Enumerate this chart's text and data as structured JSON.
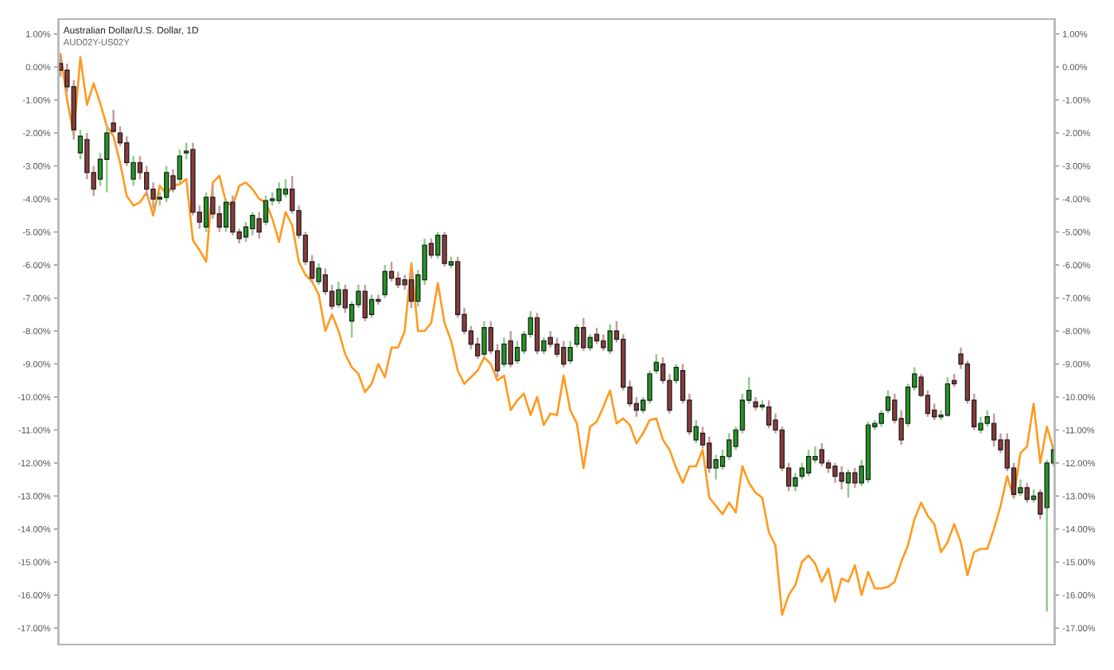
{
  "chart_data": {
    "type": "candlestick",
    "title": "Australian Dollar/U.S. Dollar, 1D",
    "subtitle": "AUD02Y-US02Y",
    "categories": [
      null,
      null,
      null,
      null,
      null,
      null,
      null,
      null,
      null,
      null,
      null,
      null,
      null,
      null,
      null,
      null,
      null,
      null,
      null,
      null,
      null,
      null,
      null,
      null,
      null,
      null,
      null,
      null,
      null,
      null,
      null,
      null,
      null,
      null,
      null,
      null,
      null,
      null,
      null,
      null,
      null,
      null,
      null,
      null,
      null,
      null,
      null,
      null,
      null,
      null,
      null,
      null,
      null,
      null,
      null,
      null,
      null,
      null,
      null,
      null,
      null,
      null,
      null,
      null,
      null,
      null,
      null,
      null,
      null,
      null,
      null,
      null,
      null,
      null,
      null,
      null,
      null,
      null,
      null,
      null,
      null,
      null,
      null,
      null,
      null,
      null,
      null,
      null,
      null,
      null,
      null,
      null,
      null,
      null,
      null,
      null,
      null,
      null,
      null,
      null,
      null,
      null,
      null,
      null,
      null,
      null,
      null,
      null,
      null,
      null,
      null,
      null,
      null,
      null,
      null,
      null,
      null,
      null,
      null,
      null,
      null,
      null,
      null,
      null,
      null,
      null,
      null,
      null,
      null,
      null,
      null,
      null,
      null,
      null,
      null,
      null,
      null,
      null,
      null,
      null,
      null,
      null,
      null,
      null,
      null,
      null,
      null,
      null,
      null,
      null,
      null
    ],
    "ohlc": [
      [
        0.1,
        0.35,
        -0.3,
        -0.1
      ],
      [
        -0.1,
        0.1,
        -0.75,
        -0.6
      ],
      [
        -0.6,
        -0.4,
        -2.2,
        -1.9
      ],
      [
        -2.6,
        -1.9,
        -2.8,
        -2.1
      ],
      [
        -2.2,
        -2.0,
        -3.4,
        -3.2
      ],
      [
        -3.2,
        -3.0,
        -3.9,
        -3.7
      ],
      [
        -3.4,
        -2.6,
        -3.6,
        -2.8
      ],
      [
        -2.8,
        -1.8,
        -3.8,
        -2.0
      ],
      [
        -1.7,
        -1.3,
        -2.0,
        -1.95
      ],
      [
        -2.0,
        -1.8,
        -2.4,
        -2.3
      ],
      [
        -2.3,
        -2.1,
        -3.0,
        -2.9
      ],
      [
        -3.4,
        -2.7,
        -3.6,
        -2.9
      ],
      [
        -2.9,
        -2.7,
        -3.4,
        -3.2
      ],
      [
        -3.2,
        -3.0,
        -3.9,
        -3.7
      ],
      [
        -3.7,
        -3.5,
        -4.3,
        -4.0
      ],
      [
        -4.0,
        -3.8,
        -4.2,
        -3.95
      ],
      [
        -3.95,
        -3.0,
        -4.1,
        -3.2
      ],
      [
        -3.3,
        -3.1,
        -3.8,
        -3.7
      ],
      [
        -3.4,
        -2.5,
        -3.5,
        -2.7
      ],
      [
        -2.6,
        -2.3,
        -2.8,
        -2.55
      ],
      [
        -2.5,
        -2.3,
        -4.5,
        -4.4
      ],
      [
        -4.4,
        -4.2,
        -4.9,
        -4.7
      ],
      [
        -4.85,
        -3.8,
        -5.0,
        -3.95
      ],
      [
        -3.95,
        -3.6,
        -4.6,
        -4.45
      ],
      [
        -4.45,
        -4.2,
        -5.0,
        -4.85
      ],
      [
        -4.85,
        -4.0,
        -5.0,
        -4.1
      ],
      [
        -4.1,
        -3.9,
        -5.1,
        -5.0
      ],
      [
        -5.0,
        -4.9,
        -5.35,
        -5.2
      ],
      [
        -5.15,
        -4.7,
        -5.3,
        -4.85
      ],
      [
        -4.9,
        -4.4,
        -5.1,
        -4.5
      ],
      [
        -4.6,
        -4.4,
        -5.2,
        -5.0
      ],
      [
        -4.7,
        -3.9,
        -4.8,
        -4.05
      ],
      [
        -4.05,
        -3.8,
        -4.2,
        -4.0
      ],
      [
        -4.05,
        -3.5,
        -4.15,
        -3.7
      ],
      [
        -3.85,
        -3.4,
        -3.95,
        -3.7
      ],
      [
        -3.7,
        -3.3,
        -4.45,
        -4.35
      ],
      [
        -4.35,
        -4.2,
        -5.2,
        -5.1
      ],
      [
        -5.1,
        -5.0,
        -6.0,
        -5.9
      ],
      [
        -5.9,
        -5.7,
        -6.55,
        -6.4
      ],
      [
        -6.5,
        -5.95,
        -6.6,
        -6.1
      ],
      [
        -6.3,
        -6.1,
        -6.9,
        -6.8
      ],
      [
        -6.8,
        -6.6,
        -7.35,
        -7.25
      ],
      [
        -7.2,
        -6.5,
        -7.3,
        -6.75
      ],
      [
        -6.75,
        -6.6,
        -7.45,
        -7.3
      ],
      [
        -7.7,
        -7.1,
        -8.2,
        -7.2
      ],
      [
        -7.2,
        -6.6,
        -7.3,
        -6.8
      ],
      [
        -6.8,
        -6.6,
        -7.7,
        -7.6
      ],
      [
        -7.5,
        -6.9,
        -7.6,
        -7.05
      ],
      [
        -7.05,
        -6.9,
        -7.2,
        -7.1
      ],
      [
        -6.9,
        -6.0,
        -7.0,
        -6.2
      ],
      [
        -6.2,
        -5.9,
        -6.5,
        -6.4
      ],
      [
        -6.4,
        -6.2,
        -6.7,
        -6.6
      ],
      [
        -6.45,
        -6.3,
        -6.75,
        -6.6
      ],
      [
        -6.45,
        -6.2,
        -7.3,
        -7.1
      ],
      [
        -7.1,
        -6.15,
        -7.25,
        -6.3
      ],
      [
        -6.45,
        -5.2,
        -6.6,
        -5.4
      ],
      [
        -5.35,
        -5.2,
        -5.8,
        -5.7
      ],
      [
        -5.7,
        -5.0,
        -5.8,
        -5.1
      ],
      [
        -5.1,
        -5.0,
        -6.05,
        -5.95
      ],
      [
        -6.0,
        -5.75,
        -6.1,
        -5.9
      ],
      [
        -5.9,
        -5.75,
        -7.6,
        -7.5
      ],
      [
        -7.5,
        -7.3,
        -8.1,
        -8.0
      ],
      [
        -8.0,
        -7.85,
        -8.55,
        -8.4
      ],
      [
        -8.4,
        -8.2,
        -8.85,
        -8.75
      ],
      [
        -8.7,
        -7.7,
        -8.8,
        -7.9
      ],
      [
        -7.9,
        -7.7,
        -8.7,
        -8.6
      ],
      [
        -8.6,
        -8.4,
        -9.4,
        -9.2
      ],
      [
        -9.0,
        -8.2,
        -9.1,
        -8.4
      ],
      [
        -8.3,
        -8.0,
        -9.1,
        -9.0
      ],
      [
        -8.9,
        -8.3,
        -9.0,
        -8.5
      ],
      [
        -8.6,
        -8.0,
        -8.7,
        -8.1
      ],
      [
        -8.1,
        -7.4,
        -8.2,
        -7.6
      ],
      [
        -7.6,
        -7.45,
        -8.7,
        -8.6
      ],
      [
        -8.6,
        -8.2,
        -8.7,
        -8.3
      ],
      [
        -8.2,
        -8.0,
        -8.5,
        -8.4
      ],
      [
        -8.4,
        -8.2,
        -8.8,
        -8.7
      ],
      [
        -8.5,
        -8.3,
        -9.1,
        -9.0
      ],
      [
        -8.9,
        -8.3,
        -9.0,
        -8.5
      ],
      [
        -8.4,
        -7.8,
        -8.5,
        -7.9
      ],
      [
        -7.9,
        -7.6,
        -8.6,
        -8.5
      ],
      [
        -8.5,
        -8.1,
        -8.6,
        -8.2
      ],
      [
        -8.1,
        -7.9,
        -8.4,
        -8.3
      ],
      [
        -8.3,
        -8.1,
        -8.6,
        -8.5
      ],
      [
        -8.6,
        -7.8,
        -8.7,
        -8.0
      ],
      [
        -8.0,
        -7.7,
        -8.35,
        -8.25
      ],
      [
        -8.25,
        -8.1,
        -9.8,
        -9.7
      ],
      [
        -9.7,
        -9.5,
        -10.3,
        -10.2
      ],
      [
        -10.2,
        -10.0,
        -10.6,
        -10.4
      ],
      [
        -10.4,
        -10.0,
        -10.5,
        -10.1
      ],
      [
        -10.1,
        -9.2,
        -10.2,
        -9.3
      ],
      [
        -9.2,
        -8.7,
        -9.3,
        -8.95
      ],
      [
        -9.0,
        -8.8,
        -9.6,
        -9.5
      ],
      [
        -9.5,
        -9.3,
        -10.5,
        -10.4
      ],
      [
        -9.5,
        -9.0,
        -9.6,
        -9.1
      ],
      [
        -9.2,
        -9.0,
        -10.2,
        -10.1
      ],
      [
        -10.1,
        -9.9,
        -11.15,
        -11.05
      ],
      [
        -11.3,
        -10.7,
        -11.4,
        -10.9
      ],
      [
        -11.1,
        -10.9,
        -11.55,
        -11.45
      ],
      [
        -11.4,
        -11.2,
        -12.3,
        -12.15
      ],
      [
        -12.15,
        -11.75,
        -12.5,
        -11.9
      ],
      [
        -12.1,
        -11.6,
        -12.2,
        -11.8
      ],
      [
        -11.8,
        -11.1,
        -11.9,
        -11.3
      ],
      [
        -11.5,
        -10.9,
        -11.6,
        -11.0
      ],
      [
        -11.0,
        -9.9,
        -11.1,
        -10.1
      ],
      [
        -10.1,
        -9.4,
        -10.2,
        -9.8
      ],
      [
        -10.15,
        -10.0,
        -10.4,
        -10.3
      ],
      [
        -10.3,
        -10.1,
        -10.4,
        -10.25
      ],
      [
        -10.3,
        -10.1,
        -10.95,
        -10.85
      ],
      [
        -10.7,
        -10.5,
        -11.1,
        -11.0
      ],
      [
        -11.0,
        -10.9,
        -12.25,
        -12.15
      ],
      [
        -12.15,
        -12.0,
        -12.85,
        -12.7
      ],
      [
        -12.7,
        -12.3,
        -12.85,
        -12.45
      ],
      [
        -12.4,
        -12.0,
        -12.5,
        -12.15
      ],
      [
        -12.3,
        -11.6,
        -12.4,
        -11.8
      ],
      [
        -11.9,
        -11.5,
        -12.0,
        -11.8
      ],
      [
        -11.6,
        -11.4,
        -12.1,
        -12.0
      ],
      [
        -12.0,
        -11.9,
        -12.3,
        -12.15
      ],
      [
        -12.1,
        -12.0,
        -12.6,
        -12.4
      ],
      [
        -12.3,
        -12.1,
        -12.8,
        -12.55
      ],
      [
        -12.6,
        -12.2,
        -13.05,
        -12.3
      ],
      [
        -12.3,
        -12.15,
        -12.75,
        -12.6
      ],
      [
        -12.6,
        -11.9,
        -12.7,
        -12.1
      ],
      [
        -12.5,
        -10.75,
        -12.6,
        -10.85
      ],
      [
        -10.9,
        -10.7,
        -11.0,
        -10.8
      ],
      [
        -10.8,
        -10.4,
        -10.9,
        -10.5
      ],
      [
        -10.4,
        -9.8,
        -10.5,
        -10.0
      ],
      [
        -10.1,
        -9.9,
        -10.8,
        -10.7
      ],
      [
        -10.65,
        -10.4,
        -11.45,
        -11.3
      ],
      [
        -10.8,
        -9.6,
        -10.9,
        -9.7
      ],
      [
        -9.7,
        -9.1,
        -9.8,
        -9.3
      ],
      [
        -9.4,
        -9.3,
        -10.0,
        -9.95
      ],
      [
        -9.95,
        -9.8,
        -10.6,
        -10.5
      ],
      [
        -10.4,
        -10.2,
        -10.7,
        -10.6
      ],
      [
        -10.6,
        -10.4,
        -10.7,
        -10.55
      ],
      [
        -10.55,
        -9.4,
        -10.6,
        -9.6
      ],
      [
        -9.5,
        -9.3,
        -9.7,
        -9.6
      ],
      [
        -8.7,
        -8.5,
        -9.15,
        -9.0
      ],
      [
        -9.0,
        -8.9,
        -10.2,
        -10.1
      ],
      [
        -10.1,
        -9.9,
        -11.0,
        -10.9
      ],
      [
        -11.0,
        -10.6,
        -11.1,
        -10.8
      ],
      [
        -10.8,
        -10.4,
        -10.9,
        -10.6
      ],
      [
        -10.8,
        -10.5,
        -11.5,
        -11.3
      ],
      [
        -11.3,
        -11.1,
        -11.7,
        -11.6
      ],
      [
        -11.3,
        -11.1,
        -12.25,
        -12.15
      ],
      [
        -12.15,
        -12.0,
        -13.05,
        -12.95
      ],
      [
        -12.9,
        -12.5,
        -13.0,
        -12.75
      ],
      [
        -12.75,
        -12.6,
        -13.2,
        -13.1
      ],
      [
        -13.1,
        -12.8,
        -13.2,
        -13.0
      ],
      [
        -12.9,
        -12.8,
        -13.7,
        -13.55
      ],
      [
        -13.35,
        -11.9,
        -16.5,
        -12.0
      ],
      [
        -12.0,
        -11.5,
        -12.1,
        -11.6
      ]
    ],
    "colors": [
      "#8e3a3a",
      "#8e3a3a",
      "#8e3a3a",
      "#1f9a1f",
      "#8e3a3a",
      "#8e3a3a",
      "#1f9a1f",
      "#1f9a1f",
      "#8e3a3a",
      "#8e3a3a",
      "#8e3a3a",
      "#1f9a1f",
      "#8e3a3a",
      "#8e3a3a",
      "#8e3a3a",
      "#1f9a1f",
      "#1f9a1f",
      "#8e3a3a",
      "#1f9a1f",
      "#1f9a1f",
      "#8e3a3a",
      "#8e3a3a",
      "#1f9a1f",
      "#8e3a3a",
      "#8e3a3a",
      "#1f9a1f",
      "#8e3a3a",
      "#8e3a3a",
      "#1f9a1f",
      "#1f9a1f",
      "#8e3a3a",
      "#1f9a1f",
      "#1f9a1f",
      "#1f9a1f",
      "#1f9a1f",
      "#8e3a3a",
      "#8e3a3a",
      "#8e3a3a",
      "#8e3a3a",
      "#1f9a1f",
      "#8e3a3a",
      "#8e3a3a",
      "#1f9a1f",
      "#8e3a3a",
      "#1f9a1f",
      "#1f9a1f",
      "#8e3a3a",
      "#1f9a1f",
      "#8e3a3a",
      "#1f9a1f",
      "#8e3a3a",
      "#8e3a3a",
      "#8e3a3a",
      "#8e3a3a",
      "#1f9a1f",
      "#1f9a1f",
      "#8e3a3a",
      "#1f9a1f",
      "#8e3a3a",
      "#1f9a1f",
      "#8e3a3a",
      "#8e3a3a",
      "#8e3a3a",
      "#8e3a3a",
      "#1f9a1f",
      "#8e3a3a",
      "#8e3a3a",
      "#1f9a1f",
      "#8e3a3a",
      "#1f9a1f",
      "#1f9a1f",
      "#1f9a1f",
      "#8e3a3a",
      "#1f9a1f",
      "#8e3a3a",
      "#8e3a3a",
      "#8e3a3a",
      "#1f9a1f",
      "#1f9a1f",
      "#8e3a3a",
      "#1f9a1f",
      "#8e3a3a",
      "#8e3a3a",
      "#1f9a1f",
      "#8e3a3a",
      "#8e3a3a",
      "#8e3a3a",
      "#8e3a3a",
      "#1f9a1f",
      "#1f9a1f",
      "#1f9a1f",
      "#8e3a3a",
      "#8e3a3a",
      "#1f9a1f",
      "#8e3a3a",
      "#8e3a3a",
      "#1f9a1f",
      "#8e3a3a",
      "#8e3a3a",
      "#1f9a1f",
      "#1f9a1f",
      "#1f9a1f",
      "#1f9a1f",
      "#1f9a1f",
      "#1f9a1f",
      "#8e3a3a",
      "#1f9a1f",
      "#8e3a3a",
      "#8e3a3a",
      "#8e3a3a",
      "#8e3a3a",
      "#1f9a1f",
      "#1f9a1f",
      "#1f9a1f",
      "#1f9a1f",
      "#8e3a3a",
      "#8e3a3a",
      "#8e3a3a",
      "#8e3a3a",
      "#1f9a1f",
      "#8e3a3a",
      "#1f9a1f",
      "#1f9a1f",
      "#1f9a1f",
      "#1f9a1f",
      "#1f9a1f",
      "#8e3a3a",
      "#8e3a3a",
      "#1f9a1f",
      "#1f9a1f",
      "#8e3a3a",
      "#8e3a3a",
      "#8e3a3a",
      "#1f9a1f",
      "#1f9a1f",
      "#8e3a3a",
      "#8e3a3a",
      "#8e3a3a",
      "#8e3a3a",
      "#1f9a1f",
      "#1f9a1f",
      "#8e3a3a",
      "#8e3a3a",
      "#8e3a3a",
      "#8e3a3a",
      "#1f9a1f",
      "#8e3a3a",
      "#1f9a1f",
      "#8e3a3a",
      "#1f9a1f",
      "#1f9a1f"
    ],
    "series": [
      {
        "type": "line",
        "color": "#ff9a1e",
        "values": [
          0.4,
          -1.0,
          -2.05,
          0.3,
          -1.15,
          -0.5,
          -1.1,
          -1.8,
          -2.1,
          -2.9,
          -3.9,
          -4.2,
          -4.1,
          -3.8,
          -4.5,
          -3.6,
          -3.85,
          -3.6,
          -3.55,
          -3.4,
          -5.25,
          -5.55,
          -5.9,
          -3.5,
          -3.3,
          -4.1,
          -4.2,
          -3.6,
          -3.5,
          -3.7,
          -4.0,
          -4.1,
          -4.6,
          -5.3,
          -4.4,
          -4.8,
          -5.9,
          -6.3,
          -6.5,
          -6.9,
          -8.0,
          -7.5,
          -8.0,
          -8.7,
          -9.1,
          -9.3,
          -9.85,
          -9.6,
          -9.0,
          -9.4,
          -8.5,
          -8.5,
          -8.0,
          -5.95,
          -8.0,
          -8.0,
          -7.75,
          -6.55,
          -7.75,
          -8.3,
          -9.2,
          -9.6,
          -9.4,
          -9.2,
          -8.8,
          -9.0,
          -9.5,
          -9.35,
          -10.4,
          -10.1,
          -9.9,
          -10.55,
          -10.0,
          -10.85,
          -10.5,
          -10.55,
          -9.35,
          -10.4,
          -10.8,
          -12.15,
          -10.9,
          -10.75,
          -10.3,
          -9.8,
          -10.8,
          -10.65,
          -10.85,
          -11.4,
          -11.1,
          -10.7,
          -10.65,
          -11.3,
          -11.6,
          -12.15,
          -12.6,
          -12.1,
          -12.1,
          -11.6,
          -13.05,
          -13.3,
          -13.55,
          -13.2,
          -13.5,
          -12.1,
          -12.6,
          -12.9,
          -13.05,
          -14.1,
          -14.5,
          -16.6,
          -16.0,
          -15.7,
          -15.0,
          -14.8,
          -15.05,
          -15.6,
          -15.2,
          -16.2,
          -15.5,
          -15.6,
          -15.1,
          -16.0,
          -15.3,
          -15.8,
          -15.8,
          -15.75,
          -15.6,
          -15.0,
          -14.5,
          -13.7,
          -13.2,
          -13.6,
          -13.85,
          -14.7,
          -14.4,
          -13.85,
          -14.4,
          -15.4,
          -14.7,
          -14.6,
          -14.6,
          -14.0,
          -13.3,
          -12.4,
          -13.05,
          -11.7,
          -11.5,
          -10.2,
          -12.0,
          -10.9,
          -11.6
        ]
      }
    ],
    "ylim": [
      -17.5,
      1.45
    ],
    "yticks": [
      {
        "value": 1,
        "label": "1.00%"
      },
      {
        "value": 0,
        "label": "0.00%"
      },
      {
        "value": -1,
        "label": "-1.00%"
      },
      {
        "value": -2,
        "label": "-2.00%"
      },
      {
        "value": -3,
        "label": "-3.00%"
      },
      {
        "value": -4,
        "label": "-4.00%"
      },
      {
        "value": -5,
        "label": "-5.00%"
      },
      {
        "value": -6,
        "label": "-6.00%"
      },
      {
        "value": -7,
        "label": "-7.00%"
      },
      {
        "value": -8,
        "label": "-8.00%"
      },
      {
        "value": -9,
        "label": "-9.00%"
      },
      {
        "value": -10,
        "label": "-10.00%"
      },
      {
        "value": -11,
        "label": "-11.00%"
      },
      {
        "value": -12,
        "label": "-12.00%"
      },
      {
        "value": -13,
        "label": "-13.00%"
      },
      {
        "value": -14,
        "label": "-14.00%"
      },
      {
        "value": -15,
        "label": "-15.00%"
      },
      {
        "value": -16,
        "label": "-16.00%"
      },
      {
        "value": -17,
        "label": "-17.00%"
      }
    ],
    "y2lim": [
      -17.5,
      1.45
    ],
    "y2ticks": [
      {
        "value": 1,
        "label": "1.00%"
      },
      {
        "value": 0,
        "label": "0.00%"
      },
      {
        "value": -1,
        "label": "-1.00%"
      },
      {
        "value": -2,
        "label": "-2.00%"
      },
      {
        "value": -3,
        "label": "-3.00%"
      },
      {
        "value": -4,
        "label": "-4.00%"
      },
      {
        "value": -5,
        "label": "-5.00%"
      },
      {
        "value": -6,
        "label": "-6.00%"
      },
      {
        "value": -7,
        "label": "-7.00%"
      },
      {
        "value": -8,
        "label": "-8.00%"
      },
      {
        "value": -9,
        "label": "-9.00%"
      },
      {
        "value": -10,
        "label": "-10.00%"
      },
      {
        "value": -11,
        "label": "-11.00%"
      },
      {
        "value": -12,
        "label": "-12.00%"
      },
      {
        "value": -13,
        "label": "-13.00%"
      },
      {
        "value": -14,
        "label": "-14.00%"
      },
      {
        "value": -15,
        "label": "-15.00%"
      },
      {
        "value": -16,
        "label": "-16.00%"
      },
      {
        "value": -17,
        "label": "-17.00%"
      }
    ],
    "tick_labels": "y"
  }
}
